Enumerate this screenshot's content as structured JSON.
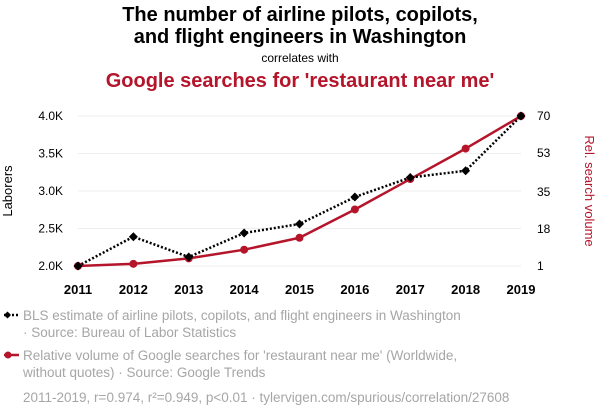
{
  "header": {
    "title_line1": "The number of airline pilots, copilots,",
    "title_line2": "and flight engineers in Washington",
    "correlates": "correlates with",
    "title2": "Google searches for 'restaurant near me'"
  },
  "colors": {
    "series1": "#000000",
    "series2": "#b5152b",
    "muted": "#a6a6a6",
    "grid": "#eeeeee"
  },
  "chart_data": {
    "type": "line",
    "x": [
      2011,
      2012,
      2013,
      2014,
      2015,
      2016,
      2017,
      2018,
      2019
    ],
    "series": [
      {
        "name": "BLS estimate of airline pilots, copilots, and flight engineers in Washington",
        "axis": "left",
        "style": "dotted",
        "marker": "diamond",
        "values": [
          2000,
          2390,
          2120,
          2440,
          2560,
          2920,
          3180,
          3270,
          4000
        ]
      },
      {
        "name": "Relative volume of Google searches for 'restaurant near me' (Worldwide, without quotes)",
        "axis": "right",
        "style": "solid",
        "marker": "circle",
        "values": [
          1,
          2,
          4.5,
          8.5,
          14,
          27,
          41,
          55,
          70
        ]
      }
    ],
    "y_left": {
      "label": "Laborers",
      "range": [
        2000,
        4000
      ],
      "ticks": [
        2000,
        2500,
        3000,
        3500,
        4000
      ],
      "tick_labels": [
        "2.0K",
        "2.5K",
        "3.0K",
        "3.5K",
        "4.0K"
      ]
    },
    "y_right": {
      "label": "Rel. search volume",
      "range": [
        1,
        70
      ],
      "ticks": [
        1,
        18,
        35,
        53,
        70
      ],
      "tick_labels": [
        "1",
        "18",
        "35",
        "53",
        "70"
      ]
    },
    "x_tick_labels": [
      "2011",
      "2012",
      "2013",
      "2014",
      "2015",
      "2016",
      "2017",
      "2018",
      "2019"
    ]
  },
  "legend": {
    "series1_line1": "BLS estimate of airline pilots, copilots, and flight engineers in Washington",
    "series1_line2": "· Source: Bureau of Labor Statistics",
    "series2_line1": "Relative volume of Google searches for 'restaurant near me' (Worldwide,",
    "series2_line2": "without quotes) · Source: Google Trends"
  },
  "footer": "2011-2019, r=0.974, r²=0.949, p<0.01 · tylervigen.com/spurious/correlation/27608"
}
